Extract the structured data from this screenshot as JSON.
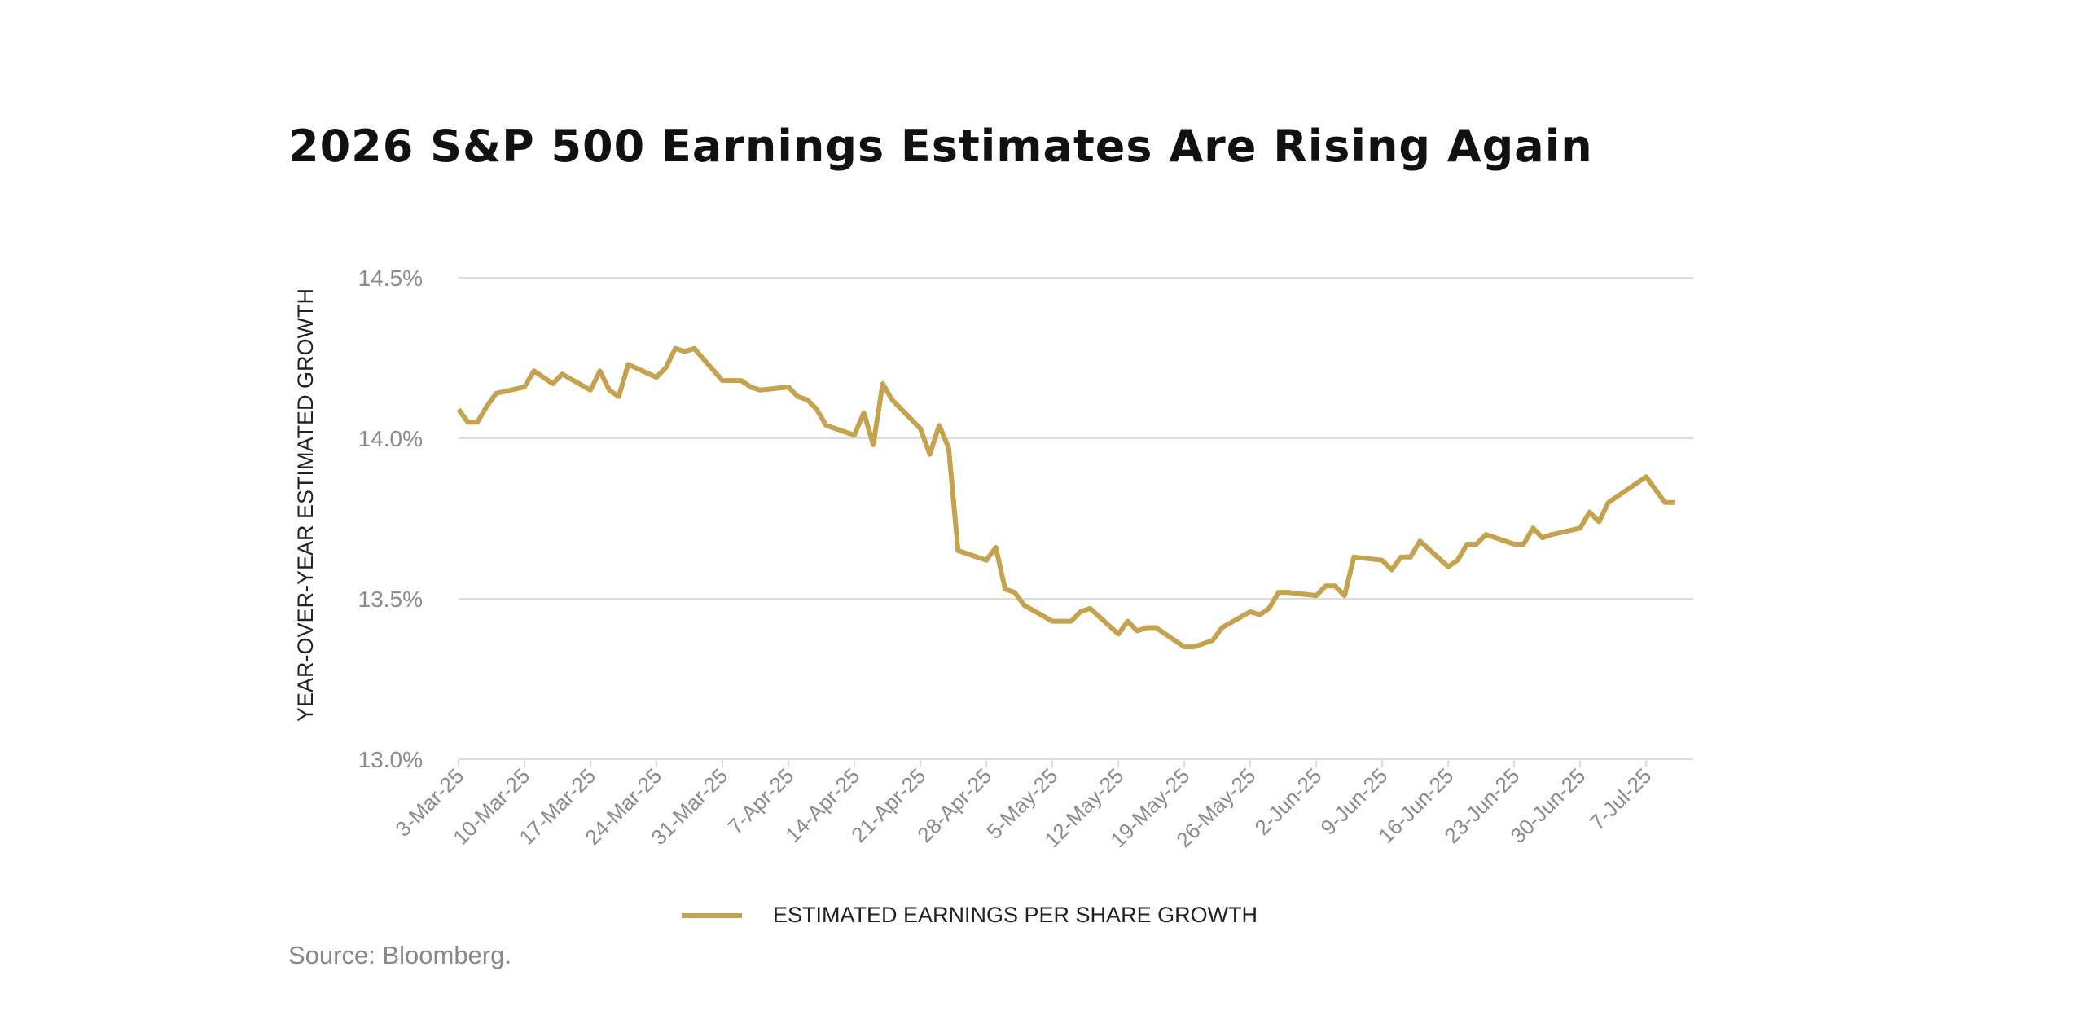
{
  "title": "2026 S&P 500 Earnings Estimates Are Rising Again",
  "source": "Source: Bloomberg.",
  "colors": {
    "line": "#c4a24e",
    "grid": "#dcdcdc",
    "tick_text": "#8a8a8a"
  },
  "chart_data": {
    "type": "line",
    "title": "2026 S&P 500 Earnings Estimates Are Rising Again",
    "xlabel": "",
    "ylabel": "YEAR-OVER-YEAR ESTIMATED GROWTH",
    "ylim": [
      13.0,
      14.5
    ],
    "xlim": [
      "2025-03-03",
      "2025-07-12"
    ],
    "grid": "horizontal",
    "legend": "bottom",
    "y_ticks": [
      "13.0%",
      "13.5%",
      "14.0%",
      "14.5%"
    ],
    "y_tick_values": [
      13.0,
      13.5,
      14.0,
      14.5
    ],
    "x_ticks": [
      "3-Mar-25",
      "10-Mar-25",
      "17-Mar-25",
      "24-Mar-25",
      "31-Mar-25",
      "7-Apr-25",
      "14-Apr-25",
      "21-Apr-25",
      "28-Apr-25",
      "5-May-25",
      "12-May-25",
      "19-May-25",
      "26-May-25",
      "2-Jun-25",
      "9-Jun-25",
      "16-Jun-25",
      "23-Jun-25",
      "30-Jun-25",
      "7-Jul-25"
    ],
    "x_tick_dates": [
      "2025-03-03",
      "2025-03-10",
      "2025-03-17",
      "2025-03-24",
      "2025-03-31",
      "2025-04-07",
      "2025-04-14",
      "2025-04-21",
      "2025-04-28",
      "2025-05-05",
      "2025-05-12",
      "2025-05-19",
      "2025-05-26",
      "2025-06-02",
      "2025-06-09",
      "2025-06-16",
      "2025-06-23",
      "2025-06-30",
      "2025-07-07"
    ],
    "series": [
      {
        "name": "ESTIMATED EARNINGS PER SHARE GROWTH",
        "x": [
          "2025-03-03",
          "2025-03-04",
          "2025-03-05",
          "2025-03-06",
          "2025-03-07",
          "2025-03-10",
          "2025-03-11",
          "2025-03-12",
          "2025-03-13",
          "2025-03-14",
          "2025-03-17",
          "2025-03-18",
          "2025-03-19",
          "2025-03-20",
          "2025-03-21",
          "2025-03-24",
          "2025-03-25",
          "2025-03-26",
          "2025-03-27",
          "2025-03-28",
          "2025-03-31",
          "2025-04-01",
          "2025-04-02",
          "2025-04-03",
          "2025-04-04",
          "2025-04-07",
          "2025-04-08",
          "2025-04-09",
          "2025-04-10",
          "2025-04-11",
          "2025-04-14",
          "2025-04-15",
          "2025-04-16",
          "2025-04-17",
          "2025-04-18",
          "2025-04-21",
          "2025-04-22",
          "2025-04-23",
          "2025-04-24",
          "2025-04-25",
          "2025-04-28",
          "2025-04-29",
          "2025-04-30",
          "2025-05-01",
          "2025-05-02",
          "2025-05-05",
          "2025-05-06",
          "2025-05-07",
          "2025-05-08",
          "2025-05-09",
          "2025-05-12",
          "2025-05-13",
          "2025-05-14",
          "2025-05-15",
          "2025-05-16",
          "2025-05-19",
          "2025-05-20",
          "2025-05-21",
          "2025-05-22",
          "2025-05-23",
          "2025-05-26",
          "2025-05-27",
          "2025-05-28",
          "2025-05-29",
          "2025-05-30",
          "2025-06-02",
          "2025-06-03",
          "2025-06-04",
          "2025-06-05",
          "2025-06-06",
          "2025-06-09",
          "2025-06-10",
          "2025-06-11",
          "2025-06-12",
          "2025-06-13",
          "2025-06-16",
          "2025-06-17",
          "2025-06-18",
          "2025-06-19",
          "2025-06-20",
          "2025-06-23",
          "2025-06-24",
          "2025-06-25",
          "2025-06-26",
          "2025-06-27",
          "2025-06-30",
          "2025-07-01",
          "2025-07-02",
          "2025-07-03",
          "2025-07-07",
          "2025-07-08",
          "2025-07-09",
          "2025-07-10"
        ],
        "values": [
          14.09,
          14.05,
          14.05,
          14.1,
          14.14,
          14.16,
          14.21,
          14.19,
          14.17,
          14.2,
          14.15,
          14.21,
          14.15,
          14.13,
          14.23,
          14.19,
          14.22,
          14.28,
          14.27,
          14.28,
          14.18,
          14.18,
          14.18,
          14.16,
          14.15,
          14.16,
          14.13,
          14.12,
          14.09,
          14.04,
          14.01,
          14.08,
          13.98,
          14.17,
          14.12,
          14.03,
          13.95,
          14.04,
          13.97,
          13.65,
          13.62,
          13.66,
          13.53,
          13.52,
          13.48,
          13.43,
          13.43,
          13.43,
          13.46,
          13.47,
          13.39,
          13.43,
          13.4,
          13.41,
          13.41,
          13.35,
          13.35,
          13.36,
          13.37,
          13.41,
          13.46,
          13.45,
          13.47,
          13.52,
          13.52,
          13.51,
          13.54,
          13.54,
          13.51,
          13.63,
          13.62,
          13.59,
          13.63,
          13.63,
          13.68,
          13.6,
          13.62,
          13.67,
          13.67,
          13.7,
          13.67,
          13.67,
          13.72,
          13.69,
          13.7,
          13.72,
          13.77,
          13.74,
          13.8,
          13.88,
          13.84,
          13.8,
          13.8
        ]
      }
    ]
  }
}
